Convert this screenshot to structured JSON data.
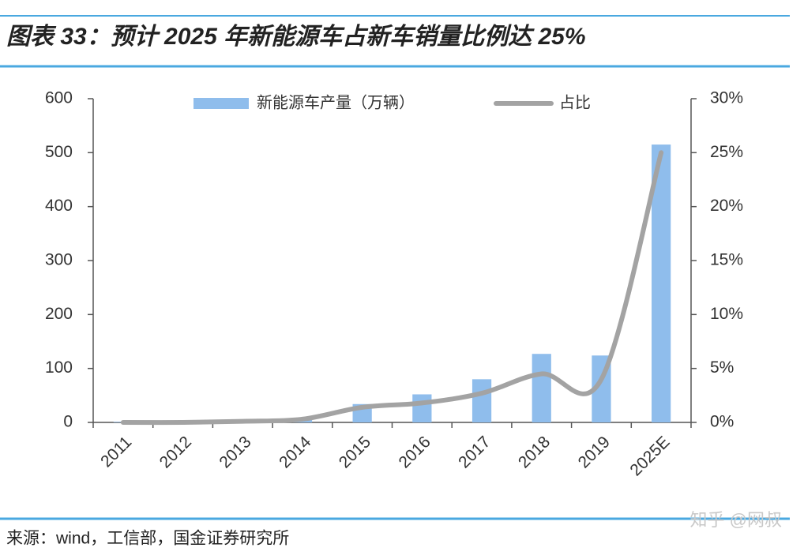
{
  "chart_data": {
    "type": "bar",
    "title": "图表 33：预计 2025 年新能源车占新车销量比例达 25%",
    "source": "来源：wind，工信部，国金证券研究所",
    "watermark": "知乎 @网叔",
    "categories": [
      "2011",
      "2012",
      "2013",
      "2014",
      "2015",
      "2016",
      "2017",
      "2018",
      "2019",
      "2025E"
    ],
    "series": [
      {
        "name": "新能源车产量（万辆）",
        "type": "bar",
        "color": "#8fbdec",
        "values": [
          1,
          1,
          2,
          8,
          34,
          52,
          80,
          127,
          124,
          515
        ]
      },
      {
        "name": "占比",
        "type": "line",
        "color": "#a3a3a3",
        "axis": "y2",
        "values": [
          0,
          0,
          0.1,
          0.3,
          1.4,
          1.8,
          2.7,
          4.5,
          4.0,
          25
        ]
      }
    ],
    "ylim": [
      0,
      600
    ],
    "yticks": [
      0,
      100,
      200,
      300,
      400,
      500,
      600
    ],
    "y2lim": [
      0,
      30
    ],
    "y2ticks": [
      {
        "value": 0,
        "label": "0%"
      },
      {
        "value": 5,
        "label": "5%"
      },
      {
        "value": 10,
        "label": "10%"
      },
      {
        "value": 15,
        "label": "15%"
      },
      {
        "value": 20,
        "label": "20%"
      },
      {
        "value": 25,
        "label": "25%"
      },
      {
        "value": 30,
        "label": "30%"
      }
    ],
    "grid": false
  }
}
